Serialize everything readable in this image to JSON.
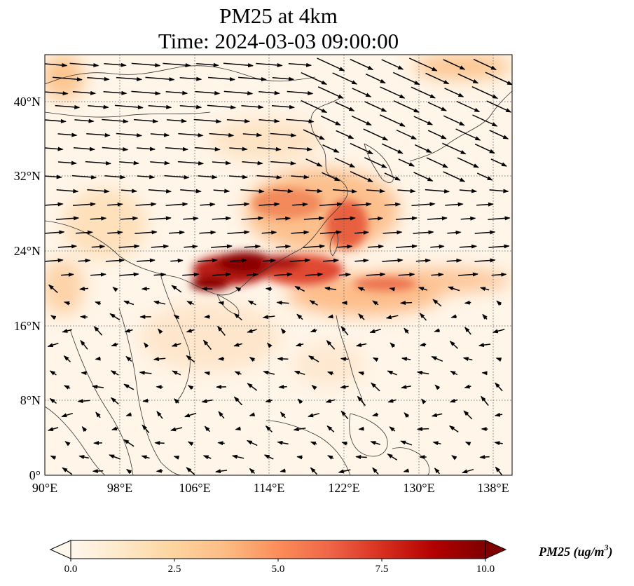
{
  "title": {
    "line1": "PM25 at 4km",
    "line2": "Time: 2024-03-03 09:00:00"
  },
  "map": {
    "lon_ticks": [
      "90°E",
      "98°E",
      "106°E",
      "114°E",
      "122°E",
      "130°E",
      "138°E"
    ],
    "lat_ticks": [
      "0°",
      "8°N",
      "16°N",
      "24°N",
      "32°N",
      "40°N"
    ],
    "lon_range": [
      90,
      140
    ],
    "lat_range": [
      0,
      45
    ],
    "gridlines": "dotted",
    "projection": "PlateCarree"
  },
  "colorbar": {
    "ticks": [
      "0.0",
      "2.5",
      "5.0",
      "7.5",
      "10.0"
    ],
    "range": [
      0,
      10
    ],
    "colormap": "OrRd",
    "extend": "both",
    "label": "PM25 (ug/m",
    "label_sup": "3",
    "label_close": ")"
  },
  "colors": {
    "low": "#fff7ec",
    "mid": "#fdbb84",
    "high": "#d7301f",
    "max": "#7f0000",
    "arrow": "#000000",
    "coast": "#333333"
  }
}
